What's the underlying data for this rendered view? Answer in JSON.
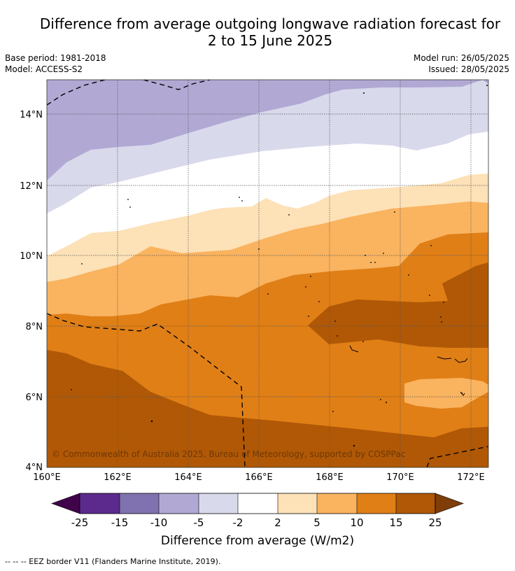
{
  "title": {
    "line1": "Difference from average outgoing longwave radiation forecast for",
    "line2": "2 to 15 June 2025"
  },
  "meta": {
    "base_period": "Base period: 1981-2018",
    "model": "Model: ACCESS-S2",
    "model_run": "Model run: 26/05/2025",
    "issued": "Issued: 28/05/2025"
  },
  "map": {
    "lat_ticks": [
      "4°N",
      "6°N",
      "8°N",
      "10°N",
      "12°N",
      "14°N"
    ],
    "lon_ticks": [
      "160°E",
      "162°E",
      "164°E",
      "166°E",
      "168°E",
      "170°E",
      "172°E"
    ],
    "copyright": "© Commonwealth of Australia 2025, Bureau of Meteorology, supported by COSPPac",
    "colors": {
      "c_n15_n10": "#8072b0",
      "c_n10_n5": "#b1a9d4",
      "c_n5_n2": "#d9d9ec",
      "c_n2_2": "#ffffff",
      "c_2_5": "#fde1b7",
      "c_5_10": "#fab35f",
      "c_10_15": "#e07f16",
      "c_15_25": "#b05806"
    }
  },
  "colorbar": {
    "labels": [
      "-25",
      "-15",
      "-10",
      "-5",
      "-2",
      "2",
      "5",
      "10",
      "15",
      "25"
    ],
    "colors": [
      "#40044a",
      "#5b2a8c",
      "#8072b0",
      "#b1a9d4",
      "#d9d9ec",
      "#ffffff",
      "#fde1b7",
      "#fab35f",
      "#e07f16",
      "#b05806",
      "#7f3d08"
    ],
    "title": "Difference from average (W/m2)"
  },
  "legend": {
    "eez_note": "--  --  -- EEZ border V11 (Flanders Marine Institute, 2019)."
  }
}
